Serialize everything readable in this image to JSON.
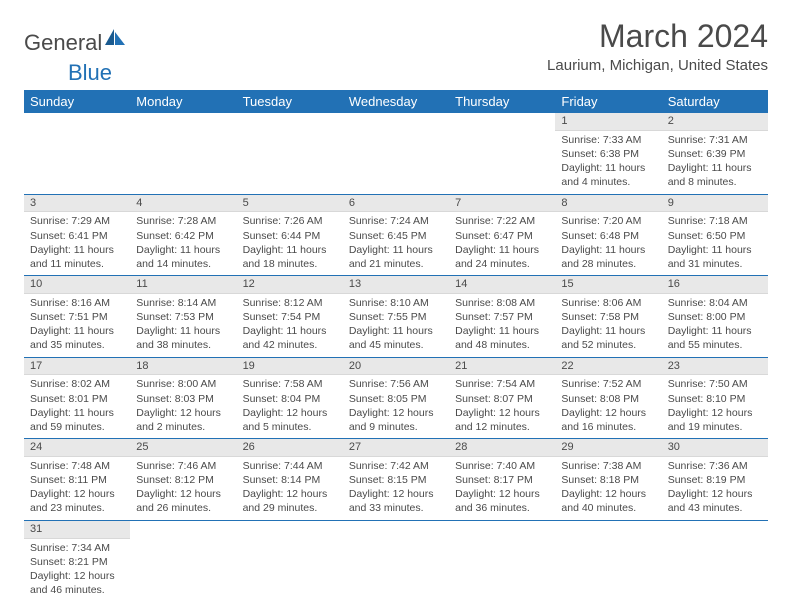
{
  "logo": {
    "text1": "General",
    "text2": "Blue"
  },
  "title": "March 2024",
  "location": "Laurium, Michigan, United States",
  "colors": {
    "header_bg": "#2271b5",
    "header_text": "#ffffff",
    "daynum_bg": "#e8e8e8",
    "text": "#4a4a4a",
    "row_border": "#2271b5"
  },
  "weekdays": [
    "Sunday",
    "Monday",
    "Tuesday",
    "Wednesday",
    "Thursday",
    "Friday",
    "Saturday"
  ],
  "weeks": [
    [
      null,
      null,
      null,
      null,
      null,
      {
        "n": "1",
        "sr": "Sunrise: 7:33 AM",
        "ss": "Sunset: 6:38 PM",
        "dl": "Daylight: 11 hours and 4 minutes."
      },
      {
        "n": "2",
        "sr": "Sunrise: 7:31 AM",
        "ss": "Sunset: 6:39 PM",
        "dl": "Daylight: 11 hours and 8 minutes."
      }
    ],
    [
      {
        "n": "3",
        "sr": "Sunrise: 7:29 AM",
        "ss": "Sunset: 6:41 PM",
        "dl": "Daylight: 11 hours and 11 minutes."
      },
      {
        "n": "4",
        "sr": "Sunrise: 7:28 AM",
        "ss": "Sunset: 6:42 PM",
        "dl": "Daylight: 11 hours and 14 minutes."
      },
      {
        "n": "5",
        "sr": "Sunrise: 7:26 AM",
        "ss": "Sunset: 6:44 PM",
        "dl": "Daylight: 11 hours and 18 minutes."
      },
      {
        "n": "6",
        "sr": "Sunrise: 7:24 AM",
        "ss": "Sunset: 6:45 PM",
        "dl": "Daylight: 11 hours and 21 minutes."
      },
      {
        "n": "7",
        "sr": "Sunrise: 7:22 AM",
        "ss": "Sunset: 6:47 PM",
        "dl": "Daylight: 11 hours and 24 minutes."
      },
      {
        "n": "8",
        "sr": "Sunrise: 7:20 AM",
        "ss": "Sunset: 6:48 PM",
        "dl": "Daylight: 11 hours and 28 minutes."
      },
      {
        "n": "9",
        "sr": "Sunrise: 7:18 AM",
        "ss": "Sunset: 6:50 PM",
        "dl": "Daylight: 11 hours and 31 minutes."
      }
    ],
    [
      {
        "n": "10",
        "sr": "Sunrise: 8:16 AM",
        "ss": "Sunset: 7:51 PM",
        "dl": "Daylight: 11 hours and 35 minutes."
      },
      {
        "n": "11",
        "sr": "Sunrise: 8:14 AM",
        "ss": "Sunset: 7:53 PM",
        "dl": "Daylight: 11 hours and 38 minutes."
      },
      {
        "n": "12",
        "sr": "Sunrise: 8:12 AM",
        "ss": "Sunset: 7:54 PM",
        "dl": "Daylight: 11 hours and 42 minutes."
      },
      {
        "n": "13",
        "sr": "Sunrise: 8:10 AM",
        "ss": "Sunset: 7:55 PM",
        "dl": "Daylight: 11 hours and 45 minutes."
      },
      {
        "n": "14",
        "sr": "Sunrise: 8:08 AM",
        "ss": "Sunset: 7:57 PM",
        "dl": "Daylight: 11 hours and 48 minutes."
      },
      {
        "n": "15",
        "sr": "Sunrise: 8:06 AM",
        "ss": "Sunset: 7:58 PM",
        "dl": "Daylight: 11 hours and 52 minutes."
      },
      {
        "n": "16",
        "sr": "Sunrise: 8:04 AM",
        "ss": "Sunset: 8:00 PM",
        "dl": "Daylight: 11 hours and 55 minutes."
      }
    ],
    [
      {
        "n": "17",
        "sr": "Sunrise: 8:02 AM",
        "ss": "Sunset: 8:01 PM",
        "dl": "Daylight: 11 hours and 59 minutes."
      },
      {
        "n": "18",
        "sr": "Sunrise: 8:00 AM",
        "ss": "Sunset: 8:03 PM",
        "dl": "Daylight: 12 hours and 2 minutes."
      },
      {
        "n": "19",
        "sr": "Sunrise: 7:58 AM",
        "ss": "Sunset: 8:04 PM",
        "dl": "Daylight: 12 hours and 5 minutes."
      },
      {
        "n": "20",
        "sr": "Sunrise: 7:56 AM",
        "ss": "Sunset: 8:05 PM",
        "dl": "Daylight: 12 hours and 9 minutes."
      },
      {
        "n": "21",
        "sr": "Sunrise: 7:54 AM",
        "ss": "Sunset: 8:07 PM",
        "dl": "Daylight: 12 hours and 12 minutes."
      },
      {
        "n": "22",
        "sr": "Sunrise: 7:52 AM",
        "ss": "Sunset: 8:08 PM",
        "dl": "Daylight: 12 hours and 16 minutes."
      },
      {
        "n": "23",
        "sr": "Sunrise: 7:50 AM",
        "ss": "Sunset: 8:10 PM",
        "dl": "Daylight: 12 hours and 19 minutes."
      }
    ],
    [
      {
        "n": "24",
        "sr": "Sunrise: 7:48 AM",
        "ss": "Sunset: 8:11 PM",
        "dl": "Daylight: 12 hours and 23 minutes."
      },
      {
        "n": "25",
        "sr": "Sunrise: 7:46 AM",
        "ss": "Sunset: 8:12 PM",
        "dl": "Daylight: 12 hours and 26 minutes."
      },
      {
        "n": "26",
        "sr": "Sunrise: 7:44 AM",
        "ss": "Sunset: 8:14 PM",
        "dl": "Daylight: 12 hours and 29 minutes."
      },
      {
        "n": "27",
        "sr": "Sunrise: 7:42 AM",
        "ss": "Sunset: 8:15 PM",
        "dl": "Daylight: 12 hours and 33 minutes."
      },
      {
        "n": "28",
        "sr": "Sunrise: 7:40 AM",
        "ss": "Sunset: 8:17 PM",
        "dl": "Daylight: 12 hours and 36 minutes."
      },
      {
        "n": "29",
        "sr": "Sunrise: 7:38 AM",
        "ss": "Sunset: 8:18 PM",
        "dl": "Daylight: 12 hours and 40 minutes."
      },
      {
        "n": "30",
        "sr": "Sunrise: 7:36 AM",
        "ss": "Sunset: 8:19 PM",
        "dl": "Daylight: 12 hours and 43 minutes."
      }
    ],
    [
      {
        "n": "31",
        "sr": "Sunrise: 7:34 AM",
        "ss": "Sunset: 8:21 PM",
        "dl": "Daylight: 12 hours and 46 minutes."
      },
      null,
      null,
      null,
      null,
      null,
      null
    ]
  ]
}
